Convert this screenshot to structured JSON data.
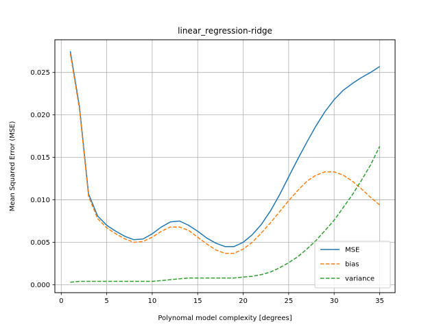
{
  "chart_data": {
    "type": "line",
    "title": "linear_regression-ridge",
    "xlabel": "Polynomal model complexity [degrees]",
    "ylabel": "Mean Squared Error (MSE)",
    "xlim": [
      -0.7,
      36.7
    ],
    "ylim": [
      -0.00093,
      0.02885
    ],
    "xticks": [
      0,
      5,
      10,
      15,
      20,
      25,
      30,
      35
    ],
    "yticks": [
      0.0,
      0.005,
      0.01,
      0.015,
      0.02,
      0.025
    ],
    "ytick_labels": [
      "0.000",
      "0.005",
      "0.010",
      "0.015",
      "0.020",
      "0.025"
    ],
    "grid": true,
    "legend_position": "lower right",
    "x": [
      1,
      2,
      3,
      4,
      5,
      6,
      7,
      8,
      9,
      10,
      11,
      12,
      13,
      14,
      15,
      16,
      17,
      18,
      19,
      20,
      21,
      22,
      23,
      24,
      25,
      26,
      27,
      28,
      29,
      30,
      31,
      32,
      33,
      34,
      35
    ],
    "series": [
      {
        "name": "MSE",
        "color": "#1f77b4",
        "style": "solid",
        "values": [
          0.0275,
          0.021,
          0.0107,
          0.0081,
          0.007,
          0.0063,
          0.0057,
          0.0053,
          0.0054,
          0.006,
          0.0068,
          0.0074,
          0.0075,
          0.007,
          0.0063,
          0.0055,
          0.0049,
          0.0045,
          0.0045,
          0.005,
          0.0059,
          0.0071,
          0.0087,
          0.0106,
          0.0127,
          0.0148,
          0.0168,
          0.0187,
          0.0204,
          0.0218,
          0.0229,
          0.0237,
          0.0244,
          0.025,
          0.0257
        ]
      },
      {
        "name": "bias",
        "color": "#ff7f0e",
        "style": "dashed",
        "values": [
          0.0272,
          0.0207,
          0.0104,
          0.0078,
          0.0067,
          0.006,
          0.0054,
          0.005,
          0.0051,
          0.0056,
          0.0063,
          0.0068,
          0.0068,
          0.0064,
          0.0056,
          0.0048,
          0.0041,
          0.0037,
          0.0037,
          0.0042,
          0.005,
          0.0061,
          0.0073,
          0.0086,
          0.0099,
          0.0111,
          0.0122,
          0.0129,
          0.0133,
          0.0133,
          0.0129,
          0.0122,
          0.0113,
          0.0103,
          0.0094
        ]
      },
      {
        "name": "variance",
        "color": "#2ca02c",
        "style": "dashed",
        "values": [
          0.0003,
          0.0004,
          0.0004,
          0.0004,
          0.0004,
          0.0004,
          0.0004,
          0.0004,
          0.0004,
          0.0004,
          0.0005,
          0.0006,
          0.0007,
          0.0008,
          0.0008,
          0.0008,
          0.0008,
          0.0008,
          0.0008,
          0.0009,
          0.001,
          0.0012,
          0.0015,
          0.002,
          0.0026,
          0.0033,
          0.0042,
          0.0052,
          0.0064,
          0.0076,
          0.0091,
          0.0106,
          0.0123,
          0.0141,
          0.0163
        ]
      }
    ]
  }
}
